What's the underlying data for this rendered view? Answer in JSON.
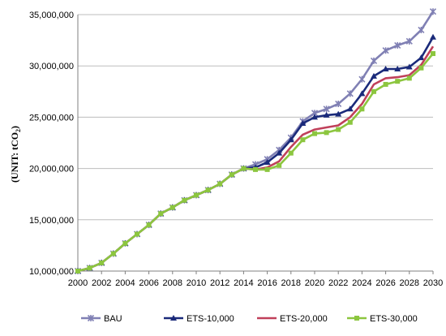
{
  "chart_data": {
    "type": "line",
    "title": "",
    "xlabel": "",
    "ylabel_main": "(UNIT: tCO",
    "ylabel_sub": "2",
    "ylabel_end": ")",
    "xlim": [
      2000,
      2030
    ],
    "ylim": [
      10000000,
      35000000
    ],
    "xticks": [
      "2000",
      "2002",
      "2004",
      "2006",
      "2008",
      "2010",
      "2012",
      "2014",
      "2016",
      "2018",
      "2020",
      "2022",
      "2024",
      "2026",
      "2028",
      "2030"
    ],
    "yticks": [
      "10,000,000",
      "15,000,000",
      "20,000,000",
      "25,000,000",
      "30,000,000",
      "35,000,000"
    ],
    "grid": "horizontal",
    "legend_position": "bottom",
    "x": [
      2000,
      2001,
      2002,
      2003,
      2004,
      2005,
      2006,
      2007,
      2008,
      2009,
      2010,
      2011,
      2012,
      2013,
      2014,
      2015,
      2016,
      2017,
      2018,
      2019,
      2020,
      2021,
      2022,
      2023,
      2024,
      2025,
      2026,
      2027,
      2028,
      2029,
      2030
    ],
    "series": [
      {
        "name": "BAU",
        "color": "#8080b4",
        "marker": "asterisk",
        "values": [
          10000000,
          10300000,
          10800000,
          11700000,
          12700000,
          13600000,
          14500000,
          15600000,
          16200000,
          16900000,
          17400000,
          17900000,
          18500000,
          19400000,
          20000000,
          20400000,
          20900000,
          21800000,
          23000000,
          24600000,
          25400000,
          25800000,
          26300000,
          27300000,
          28700000,
          30500000,
          31500000,
          32000000,
          32400000,
          33500000,
          35300000
        ]
      },
      {
        "name": "ETS-10,000",
        "color": "#1a2a7a",
        "marker": "triangle",
        "values": [
          10000000,
          10300000,
          10800000,
          11700000,
          12700000,
          13600000,
          14500000,
          15600000,
          16200000,
          16900000,
          17400000,
          17900000,
          18500000,
          19400000,
          20000000,
          20100000,
          20600000,
          21500000,
          22800000,
          24400000,
          25000000,
          25200000,
          25300000,
          25800000,
          27300000,
          29000000,
          29700000,
          29700000,
          29900000,
          30800000,
          32800000
        ]
      },
      {
        "name": "ETS-20,000",
        "color": "#c0405a",
        "marker": "none",
        "values": [
          10000000,
          10300000,
          10800000,
          11700000,
          12700000,
          13600000,
          14500000,
          15600000,
          16200000,
          16900000,
          17400000,
          17900000,
          18500000,
          19400000,
          20000000,
          19900000,
          20100000,
          20700000,
          22100000,
          23300000,
          23800000,
          24000000,
          24200000,
          25000000,
          26300000,
          28200000,
          28800000,
          28900000,
          29100000,
          30100000,
          31900000
        ]
      },
      {
        "name": "ETS-30,000",
        "color": "#8cc63f",
        "marker": "square",
        "values": [
          10000000,
          10300000,
          10800000,
          11700000,
          12700000,
          13600000,
          14500000,
          15600000,
          16200000,
          16900000,
          17400000,
          17900000,
          18500000,
          19400000,
          20000000,
          19900000,
          19900000,
          20300000,
          21500000,
          22800000,
          23400000,
          23500000,
          23800000,
          24500000,
          25800000,
          27500000,
          28200000,
          28500000,
          28800000,
          29800000,
          31200000
        ]
      }
    ]
  }
}
